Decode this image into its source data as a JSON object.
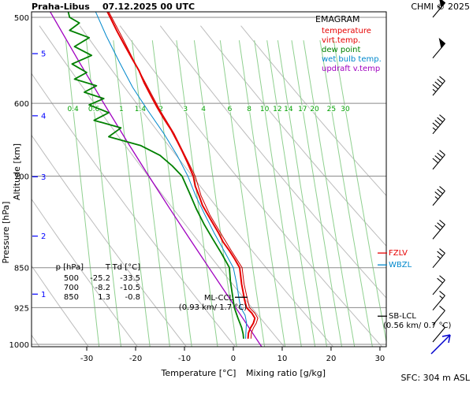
{
  "header": {
    "station": "Praha-Libus",
    "datetime": "07.12.2025 00 UTC",
    "copyright": "CHMI © 2025"
  },
  "footer": {
    "surface_label": "SFC: 304 m ASL"
  },
  "legend": {
    "title": "EMAGRAM",
    "items": [
      {
        "label": "temperature",
        "color": "#e60000"
      },
      {
        "label": "virt.temp.",
        "color": "#e60000"
      },
      {
        "label": "dew point",
        "color": "#008000"
      },
      {
        "label": "wet bulb temp.",
        "color": "#0088cc"
      },
      {
        "label": "updraft v.temp",
        "color": "#a000c0"
      }
    ]
  },
  "table": {
    "headers": [
      "p [hPa]",
      "T",
      "Td [°C]"
    ],
    "rows": [
      [
        "500",
        "-25.2",
        "-33.5"
      ],
      [
        "700",
        "-8.2",
        "-10.5"
      ],
      [
        "850",
        "1.3",
        "-0.8"
      ]
    ]
  },
  "annotations": {
    "ml_ccl": {
      "label": "ML-CCL",
      "detail": "(0.93 km/ 1.7 °C)",
      "hpa": 905,
      "color": "#000000"
    },
    "sb_lcl": {
      "label": "SB-LCL",
      "detail": "(0.56 km/ 0.7 °C)",
      "hpa": 942,
      "color": "#000000"
    },
    "fzlv": {
      "label": "FZLV",
      "hpa": 824,
      "color": "#e60000"
    },
    "wbzl": {
      "label": "WBZL",
      "hpa": 845,
      "color": "#0088cc"
    }
  },
  "chart_data": {
    "type": "line",
    "title": "EMAGRAM thermodynamic diagram, Praha-Libus 07.12.2025 00 UTC",
    "x_axis": {
      "label": "Temperature [°C]",
      "ticks": [
        -30,
        -20,
        -10,
        0,
        10,
        20,
        30
      ],
      "range": [
        -41.3,
        31.3
      ]
    },
    "x_axis_secondary": {
      "label": "Mixing ratio [g/kg]",
      "color": "#00a000"
    },
    "y_axis": {
      "label": "Pressure [hPa]",
      "ticks": [
        500,
        600,
        700,
        850,
        925,
        1000
      ],
      "range": [
        494.2,
        1005
      ],
      "scale": "log"
    },
    "y_axis_secondary": {
      "label": "Altitude [km]",
      "color": "#0000ff",
      "ticks": [
        {
          "km": 1,
          "hpa": 899
        },
        {
          "km": 2,
          "hpa": 795
        },
        {
          "km": 3,
          "hpa": 701
        },
        {
          "km": 4,
          "hpa": 616
        },
        {
          "km": 5,
          "hpa": 540
        }
      ]
    },
    "dry_adiabats_theta_C": [
      -40,
      -30,
      -20,
      -10,
      0,
      10,
      20,
      30,
      40,
      50,
      60
    ],
    "mixing_ratio_g_kg": [
      0.4,
      0.6,
      1,
      1.4,
      2,
      3,
      4,
      6,
      8,
      10,
      12,
      14,
      17,
      20,
      25,
      30
    ],
    "mixing_ratio_label_hpa": 607,
    "series": [
      {
        "name": "updraft-v-temp",
        "color": "#a000c0",
        "width": 1.3,
        "points": [
          [
            494,
            -37.5
          ],
          [
            550,
            -31.5
          ],
          [
            600,
            -26.5
          ],
          [
            650,
            -21.8
          ],
          [
            700,
            -17.3
          ],
          [
            750,
            -13.0
          ],
          [
            800,
            -8.9
          ],
          [
            850,
            -5.0
          ],
          [
            900,
            -1.3
          ],
          [
            950,
            2.2
          ],
          [
            988,
            4.7
          ],
          [
            1005,
            5.8
          ]
        ]
      },
      {
        "name": "wet-bulb-temp",
        "color": "#0088cc",
        "width": 1,
        "points": [
          [
            494,
            -28.2
          ],
          [
            520,
            -26.0
          ],
          [
            550,
            -23.3
          ],
          [
            580,
            -20.6
          ],
          [
            610,
            -17.4
          ],
          [
            640,
            -14.2
          ],
          [
            670,
            -11.5
          ],
          [
            700,
            -9.3
          ],
          [
            730,
            -7.7
          ],
          [
            760,
            -5.8
          ],
          [
            790,
            -3.9
          ],
          [
            820,
            -1.9
          ],
          [
            850,
            0.0
          ],
          [
            880,
            0.7
          ],
          [
            910,
            1.2
          ],
          [
            925,
            1.5
          ],
          [
            940,
            2.4
          ],
          [
            955,
            2.7
          ],
          [
            970,
            2.6
          ],
          [
            988,
            2.5
          ]
        ]
      },
      {
        "name": "virtual-temperature",
        "color": "#cc0000",
        "width": 1,
        "points": [
          [
            494,
            -25.5
          ],
          [
            520,
            -22.9
          ],
          [
            550,
            -20.2
          ],
          [
            580,
            -17.5
          ],
          [
            610,
            -14.9
          ],
          [
            640,
            -12.1
          ],
          [
            670,
            -9.9
          ],
          [
            700,
            -7.8
          ],
          [
            730,
            -6.6
          ],
          [
            760,
            -4.8
          ],
          [
            790,
            -2.6
          ],
          [
            820,
            -0.4
          ],
          [
            850,
            1.8
          ],
          [
            880,
            2.2
          ],
          [
            910,
            2.9
          ],
          [
            925,
            3.3
          ],
          [
            936,
            4.4
          ],
          [
            946,
            5.0
          ],
          [
            956,
            4.7
          ],
          [
            966,
            4.1
          ],
          [
            976,
            3.7
          ],
          [
            988,
            3.6
          ]
        ]
      },
      {
        "name": "dew-point",
        "color": "#008000",
        "width": 1.8,
        "points": [
          [
            494,
            -33.8
          ],
          [
            500,
            -33.5
          ],
          [
            506,
            -31.5
          ],
          [
            514,
            -33.5
          ],
          [
            522,
            -29.5
          ],
          [
            532,
            -32.5
          ],
          [
            542,
            -29.0
          ],
          [
            552,
            -33.0
          ],
          [
            562,
            -30.0
          ],
          [
            570,
            -32.5
          ],
          [
            578,
            -28.0
          ],
          [
            586,
            -30.5
          ],
          [
            594,
            -26.5
          ],
          [
            602,
            -29.5
          ],
          [
            612,
            -25.5
          ],
          [
            622,
            -28.5
          ],
          [
            632,
            -23.0
          ],
          [
            644,
            -25.5
          ],
          [
            656,
            -19.0
          ],
          [
            670,
            -15.0
          ],
          [
            685,
            -12.5
          ],
          [
            700,
            -10.5
          ],
          [
            725,
            -9.0
          ],
          [
            750,
            -7.6
          ],
          [
            775,
            -6.0
          ],
          [
            800,
            -4.2
          ],
          [
            825,
            -2.4
          ],
          [
            850,
            -0.8
          ],
          [
            875,
            -0.6
          ],
          [
            900,
            -0.2
          ],
          [
            925,
            0.2
          ],
          [
            945,
            0.9
          ],
          [
            965,
            1.7
          ],
          [
            978,
            2.0
          ],
          [
            988,
            2.1
          ]
        ]
      },
      {
        "name": "temperature",
        "color": "#e60000",
        "width": 2,
        "points": [
          [
            494,
            -25.8
          ],
          [
            500,
            -25.2
          ],
          [
            515,
            -23.8
          ],
          [
            530,
            -22.3
          ],
          [
            545,
            -20.8
          ],
          [
            560,
            -19.3
          ],
          [
            575,
            -18.2
          ],
          [
            590,
            -16.9
          ],
          [
            605,
            -15.6
          ],
          [
            620,
            -14.2
          ],
          [
            635,
            -12.7
          ],
          [
            650,
            -11.5
          ],
          [
            665,
            -10.4
          ],
          [
            680,
            -9.4
          ],
          [
            700,
            -8.2
          ],
          [
            715,
            -7.8
          ],
          [
            730,
            -7.0
          ],
          [
            745,
            -6.3
          ],
          [
            760,
            -5.2
          ],
          [
            775,
            -4.1
          ],
          [
            790,
            -3.0
          ],
          [
            805,
            -2.1
          ],
          [
            820,
            -0.8
          ],
          [
            835,
            0.3
          ],
          [
            850,
            1.3
          ],
          [
            865,
            1.5
          ],
          [
            880,
            1.7
          ],
          [
            895,
            2.0
          ],
          [
            910,
            2.3
          ],
          [
            925,
            2.7
          ],
          [
            936,
            3.8
          ],
          [
            946,
            4.4
          ],
          [
            956,
            4.1
          ],
          [
            966,
            3.5
          ],
          [
            976,
            3.1
          ],
          [
            988,
            3.0
          ]
        ]
      }
    ],
    "wind_barbs": {
      "x": 549,
      "dir_deg": 45,
      "levels": [
        {
          "hpa": 500,
          "kt": 55
        },
        {
          "hpa": 545,
          "kt": 50
        },
        {
          "hpa": 590,
          "kt": 45
        },
        {
          "hpa": 640,
          "kt": 45
        },
        {
          "hpa": 690,
          "kt": 40
        },
        {
          "hpa": 745,
          "kt": 35
        },
        {
          "hpa": 800,
          "kt": 30
        },
        {
          "hpa": 850,
          "kt": 25
        },
        {
          "hpa": 900,
          "kt": 20
        },
        {
          "hpa": 930,
          "kt": 15
        },
        {
          "hpa": 960,
          "kt": 10
        },
        {
          "hpa": 995,
          "kt": 5
        }
      ]
    },
    "surface_wind_arrow": {
      "color": "#0000cc"
    }
  }
}
